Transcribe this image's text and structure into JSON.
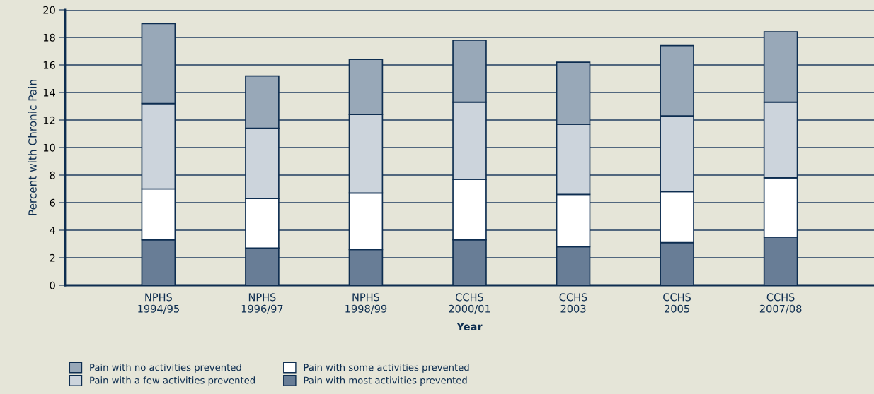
{
  "chart_data": {
    "type": "bar",
    "stacked": true,
    "xlabel": "Year",
    "ylabel": "Percent with Chronic Pain",
    "categories": [
      "NPHS\n1994/95",
      "NPHS\n1996/97",
      "NPHS\n1998/99",
      "CCHS\n2000/01",
      "CCHS\n2003",
      "CCHS\n2005",
      "CCHS\n2007/08"
    ],
    "series": [
      {
        "name": "Pain with most activities prevented",
        "color": "#687d96",
        "values": [
          3.3,
          2.7,
          2.6,
          3.3,
          2.8,
          3.1,
          3.5
        ]
      },
      {
        "name": "Pain with some activities prevented",
        "color": "#ffffff",
        "values": [
          3.7,
          3.6,
          4.1,
          4.4,
          3.8,
          3.7,
          4.3
        ]
      },
      {
        "name": "Pain with a few activities prevented",
        "color": "#ccd4dc",
        "values": [
          6.2,
          5.1,
          5.7,
          5.6,
          5.1,
          5.5,
          5.5
        ]
      },
      {
        "name": "Pain with no activities prevented",
        "color": "#98a8b8",
        "values": [
          5.8,
          3.8,
          4.0,
          4.5,
          4.5,
          5.1,
          5.1
        ]
      }
    ],
    "ylim": [
      0,
      20
    ],
    "yticks": [
      0,
      2,
      4,
      6,
      8,
      10,
      12,
      14,
      16,
      18,
      20
    ],
    "grid": "y",
    "legend": "bottom left"
  }
}
